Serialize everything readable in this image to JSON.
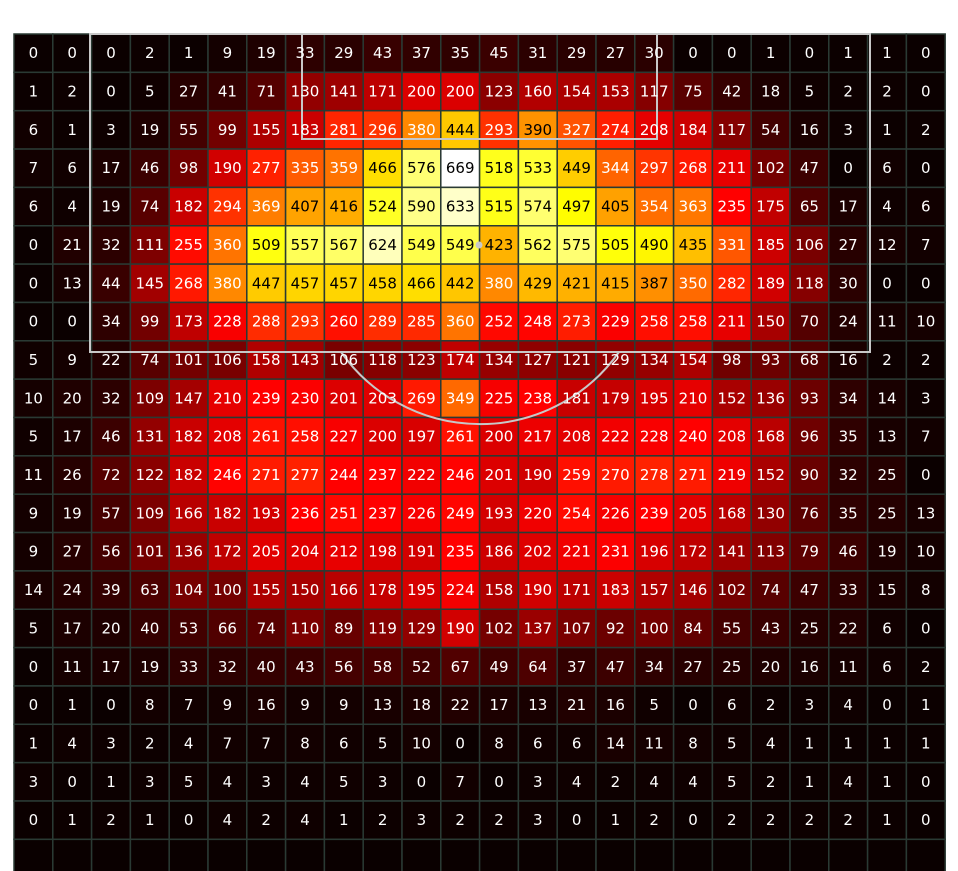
{
  "chart_data": {
    "type": "heatmap",
    "title": "",
    "xlabel": "",
    "ylabel": "",
    "grid": true,
    "colormap": "hot",
    "value_range": [
      0,
      669
    ],
    "colors": {
      "background": "#0a0000",
      "grid_line": "#2a3a34",
      "pitch_line": "#c8c8c8",
      "text_dark": "#000000",
      "text_light": "#ffffff"
    },
    "rows": [
      [
        0,
        0,
        0,
        2,
        1,
        9,
        19,
        33,
        29,
        43,
        37,
        35,
        45,
        31,
        29,
        27,
        30,
        0,
        0,
        1,
        0,
        1,
        1,
        0
      ],
      [
        1,
        2,
        0,
        5,
        27,
        41,
        71,
        130,
        141,
        171,
        200,
        200,
        123,
        160,
        154,
        153,
        117,
        75,
        42,
        18,
        5,
        2,
        2,
        0
      ],
      [
        6,
        1,
        3,
        19,
        55,
        99,
        155,
        183,
        281,
        296,
        380,
        444,
        293,
        390,
        327,
        274,
        208,
        184,
        117,
        54,
        16,
        3,
        1,
        2
      ],
      [
        7,
        6,
        17,
        46,
        98,
        190,
        277,
        335,
        359,
        466,
        576,
        669,
        518,
        533,
        449,
        344,
        297,
        268,
        211,
        102,
        47,
        0,
        6,
        0
      ],
      [
        6,
        4,
        19,
        74,
        182,
        294,
        369,
        407,
        416,
        524,
        590,
        633,
        515,
        574,
        497,
        405,
        354,
        363,
        235,
        175,
        65,
        17,
        4,
        6
      ],
      [
        0,
        21,
        32,
        111,
        255,
        360,
        509,
        557,
        567,
        624,
        549,
        549,
        423,
        562,
        575,
        505,
        490,
        435,
        331,
        185,
        106,
        27,
        12,
        7
      ],
      [
        0,
        13,
        44,
        145,
        268,
        380,
        447,
        457,
        457,
        458,
        466,
        442,
        380,
        429,
        421,
        415,
        387,
        350,
        282,
        189,
        118,
        30,
        0,
        0
      ],
      [
        0,
        0,
        34,
        99,
        173,
        228,
        288,
        293,
        260,
        289,
        285,
        360,
        252,
        248,
        273,
        229,
        258,
        258,
        211,
        150,
        70,
        24,
        11,
        10
      ],
      [
        5,
        9,
        22,
        74,
        101,
        106,
        158,
        143,
        106,
        118,
        123,
        174,
        134,
        127,
        121,
        129,
        134,
        154,
        98,
        93,
        68,
        16,
        2,
        2
      ],
      [
        10,
        20,
        32,
        109,
        147,
        210,
        239,
        230,
        201,
        203,
        269,
        349,
        225,
        238,
        181,
        179,
        195,
        210,
        152,
        136,
        93,
        34,
        14,
        3
      ],
      [
        5,
        17,
        46,
        131,
        182,
        208,
        261,
        258,
        227,
        200,
        197,
        261,
        200,
        217,
        208,
        222,
        228,
        240,
        208,
        168,
        96,
        35,
        13,
        7
      ],
      [
        11,
        26,
        72,
        122,
        182,
        246,
        271,
        277,
        244,
        237,
        222,
        246,
        201,
        190,
        259,
        270,
        278,
        271,
        219,
        152,
        90,
        32,
        25,
        0
      ],
      [
        9,
        19,
        57,
        109,
        166,
        182,
        193,
        236,
        251,
        237,
        226,
        249,
        193,
        220,
        254,
        226,
        239,
        205,
        168,
        130,
        76,
        35,
        25,
        13
      ],
      [
        9,
        27,
        56,
        101,
        136,
        172,
        205,
        204,
        212,
        198,
        191,
        235,
        186,
        202,
        221,
        231,
        196,
        172,
        141,
        113,
        79,
        46,
        19,
        10
      ],
      [
        14,
        24,
        39,
        63,
        104,
        100,
        155,
        150,
        166,
        178,
        195,
        224,
        158,
        190,
        171,
        183,
        157,
        146,
        102,
        74,
        47,
        33,
        15,
        8
      ],
      [
        5,
        17,
        20,
        40,
        53,
        66,
        74,
        110,
        89,
        119,
        129,
        190,
        102,
        137,
        107,
        92,
        100,
        84,
        55,
        43,
        25,
        22,
        6,
        0
      ],
      [
        0,
        11,
        17,
        19,
        33,
        32,
        40,
        43,
        56,
        58,
        52,
        67,
        49,
        64,
        37,
        47,
        34,
        27,
        25,
        20,
        16,
        11,
        6,
        2
      ],
      [
        0,
        1,
        0,
        8,
        7,
        9,
        16,
        9,
        9,
        13,
        18,
        22,
        17,
        13,
        21,
        16,
        5,
        0,
        6,
        2,
        3,
        4,
        0,
        1
      ],
      [
        1,
        4,
        3,
        2,
        4,
        7,
        7,
        8,
        6,
        5,
        10,
        0,
        8,
        6,
        6,
        14,
        11,
        8,
        5,
        4,
        1,
        1,
        1,
        1
      ],
      [
        3,
        0,
        1,
        3,
        5,
        4,
        3,
        4,
        5,
        3,
        0,
        7,
        0,
        3,
        4,
        2,
        4,
        4,
        5,
        2,
        1,
        4,
        1,
        0
      ],
      [
        0,
        1,
        2,
        1,
        0,
        4,
        2,
        4,
        1,
        2,
        3,
        2,
        2,
        3,
        0,
        1,
        2,
        0,
        2,
        2,
        2,
        2,
        1,
        0
      ],
      [
        null,
        null,
        null,
        null,
        null,
        null,
        null,
        null,
        null,
        null,
        null,
        null,
        null,
        null,
        null,
        null,
        null,
        null,
        null,
        null,
        null,
        null,
        null,
        null
      ]
    ]
  }
}
